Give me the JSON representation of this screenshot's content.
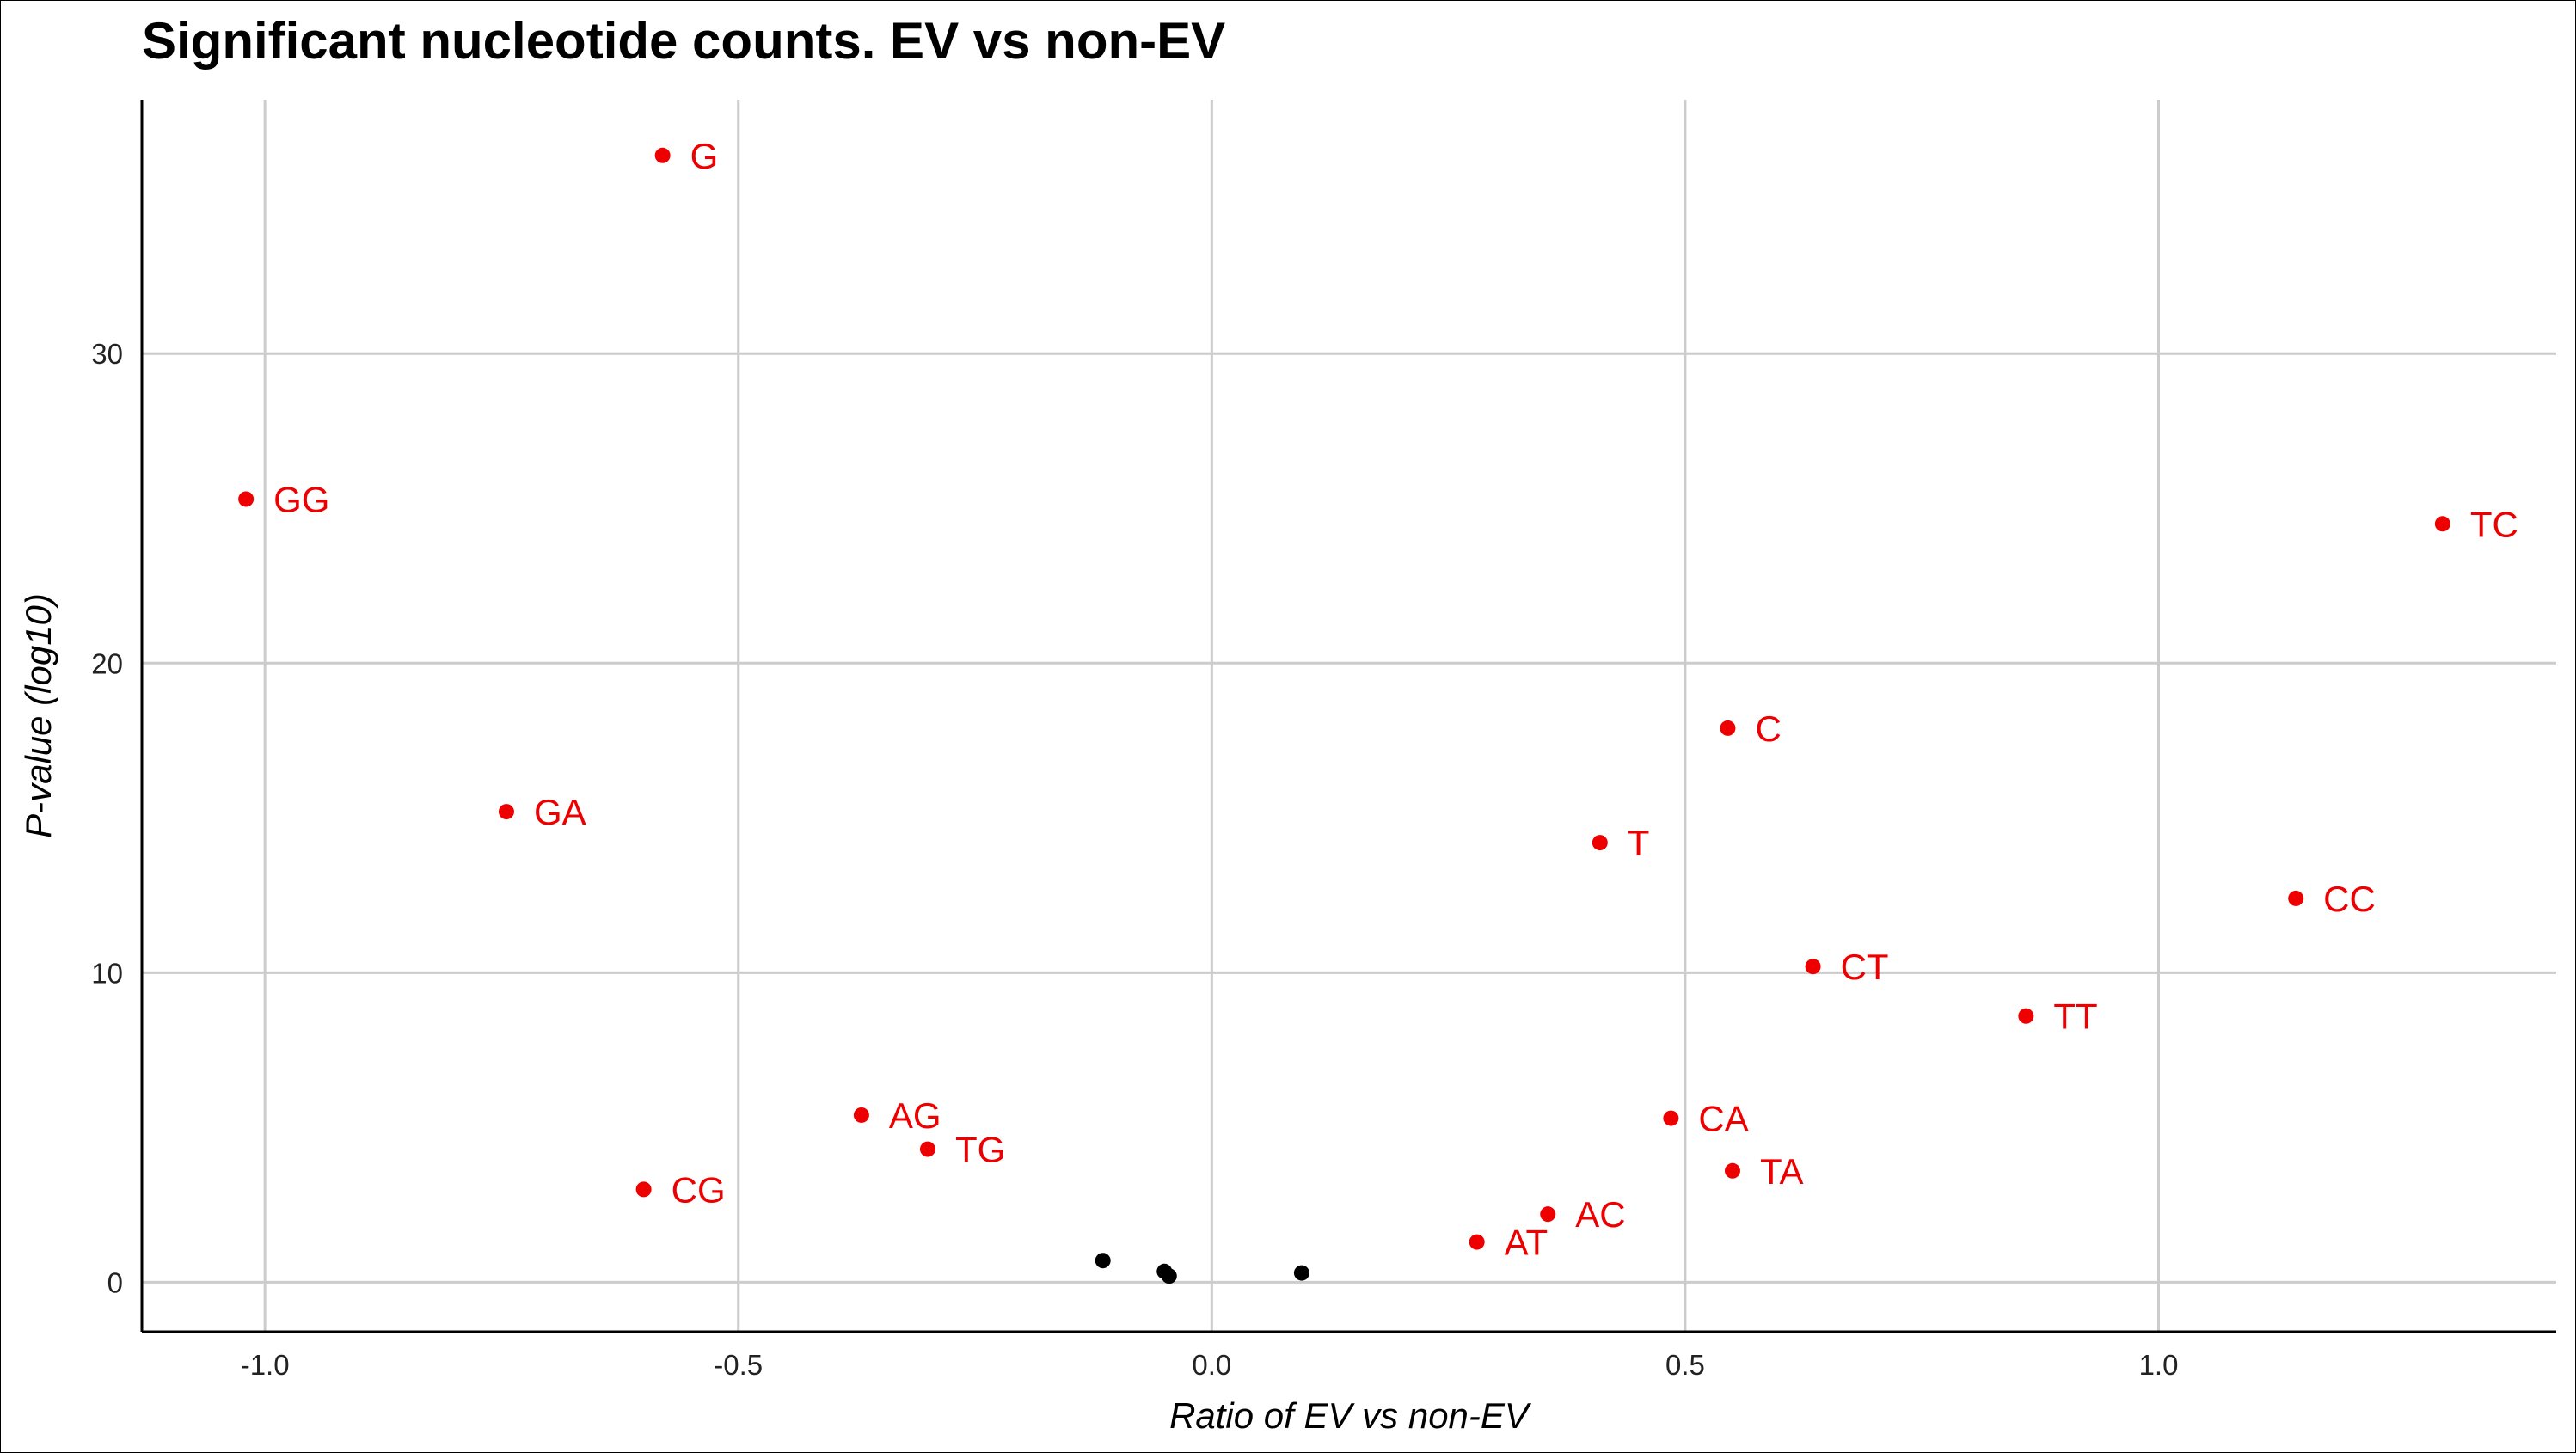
{
  "chart_data": {
    "type": "scatter",
    "title": "Significant nucleotide counts. EV vs non-EV",
    "xlabel": "Ratio of EV vs non-EV",
    "ylabel": "P-value (log10)",
    "xlim": [
      -1.13,
      1.42
    ],
    "ylim": [
      -1.6,
      38.2
    ],
    "xticks": [
      -1.0,
      -0.5,
      0.0,
      0.5,
      1.0
    ],
    "xtick_labels": [
      "-1.0",
      "-0.5",
      "0.0",
      "0.5",
      "1.0"
    ],
    "yticks": [
      0,
      10,
      20,
      30
    ],
    "ytick_labels": [
      "0",
      "10",
      "20",
      "30"
    ],
    "grid": true,
    "significant_color": "#ee0000",
    "nonsignificant_color": "#000000",
    "points": [
      {
        "label": "G",
        "x": -0.58,
        "y": 36.4,
        "significant": true
      },
      {
        "label": "GG",
        "x": -1.02,
        "y": 25.3,
        "significant": true
      },
      {
        "label": "TC",
        "x": 1.3,
        "y": 24.5,
        "significant": true
      },
      {
        "label": "C",
        "x": 0.545,
        "y": 17.9,
        "significant": true
      },
      {
        "label": "GA",
        "x": -0.745,
        "y": 15.2,
        "significant": true
      },
      {
        "label": "T",
        "x": 0.41,
        "y": 14.2,
        "significant": true
      },
      {
        "label": "CC",
        "x": 1.145,
        "y": 12.4,
        "significant": true
      },
      {
        "label": "CT",
        "x": 0.635,
        "y": 10.2,
        "significant": true
      },
      {
        "label": "TT",
        "x": 0.86,
        "y": 8.6,
        "significant": true
      },
      {
        "label": "AG",
        "x": -0.37,
        "y": 5.4,
        "significant": true
      },
      {
        "label": "CA",
        "x": 0.485,
        "y": 5.3,
        "significant": true
      },
      {
        "label": "TG",
        "x": -0.3,
        "y": 4.3,
        "significant": true
      },
      {
        "label": "TA",
        "x": 0.55,
        "y": 3.6,
        "significant": true
      },
      {
        "label": "CG",
        "x": -0.6,
        "y": 3.0,
        "significant": true
      },
      {
        "label": "AC",
        "x": 0.355,
        "y": 2.2,
        "significant": true
      },
      {
        "label": "AT",
        "x": 0.28,
        "y": 1.3,
        "significant": true
      },
      {
        "label": "",
        "x": -0.115,
        "y": 0.7,
        "significant": false
      },
      {
        "label": "",
        "x": -0.05,
        "y": 0.35,
        "significant": false
      },
      {
        "label": "",
        "x": -0.045,
        "y": 0.2,
        "significant": false
      },
      {
        "label": "",
        "x": 0.095,
        "y": 0.3,
        "significant": false
      }
    ]
  }
}
